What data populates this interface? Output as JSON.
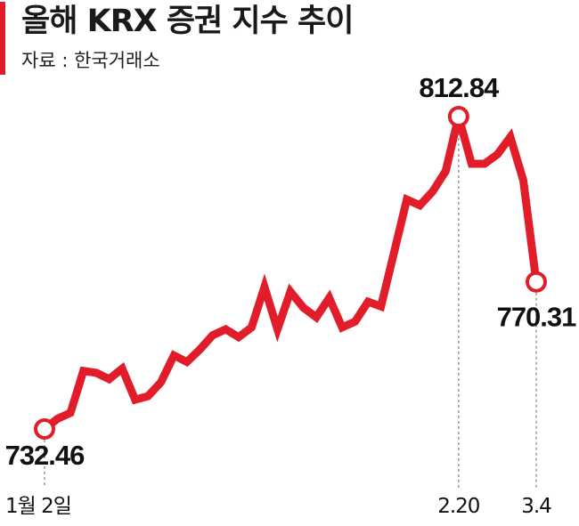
{
  "header": {
    "title": "올해 KRX 증권 지수 추이",
    "source": "자료 : 한국거래소"
  },
  "colors": {
    "accent": "#e11d2a",
    "text": "#1a1a1a",
    "dash": "#9a9a9a"
  },
  "chart_data": {
    "type": "line",
    "title": "올해 KRX 증권 지수 추이",
    "xlabel": "",
    "ylabel": "",
    "grid": false,
    "ylim": [
      732.46,
      812.84
    ],
    "x_tick_labels": [
      {
        "index": 0,
        "label": "1월 2일"
      },
      {
        "index": 32,
        "label": "2.20"
      },
      {
        "index": 38,
        "label": "3.4"
      }
    ],
    "series": [
      {
        "values": [
          732.46,
          735.1,
          736.6,
          747.4,
          746.9,
          745.3,
          748.0,
          740.0,
          740.9,
          744.5,
          751.4,
          749.7,
          752.9,
          756.6,
          758.1,
          756.1,
          758.6,
          769.0,
          758.1,
          767.8,
          763.7,
          761.2,
          766.2,
          758.6,
          760.1,
          765.2,
          764.0,
          777.7,
          791.5,
          790.0,
          793.6,
          798.8,
          812.84,
          800.7,
          800.7,
          803.1,
          807.6,
          796.4,
          770.31
        ]
      }
    ],
    "annotations": [
      {
        "index": 0,
        "value": 732.46,
        "label": "732.46"
      },
      {
        "index": 32,
        "value": 812.84,
        "label": "812.84"
      },
      {
        "index": 38,
        "value": 770.31,
        "label": "770.31"
      }
    ]
  }
}
